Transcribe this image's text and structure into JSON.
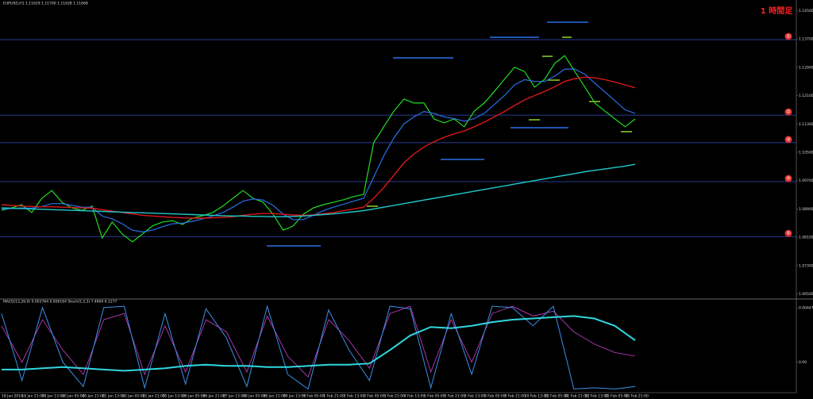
{
  "chart_data": [
    {
      "type": "line",
      "title": "EURUSD,H1  1.11629 1.11700 1.11628 1.11668",
      "annotation": "1 時間足",
      "categories": [
        "18 Jan 2016",
        null,
        "18 Jan 21:00",
        null,
        "19 Jan 13:00",
        null,
        "20 Jan 05:00",
        null,
        "20 Jan 21:00",
        null,
        "21 Jan 13:00",
        null,
        "22 Jan 05:00",
        null,
        "22 Jan 21:00",
        null,
        "25 Jan 13:00",
        null,
        "26 Jan 05:00",
        null,
        "26 Jan 21:00",
        null,
        "27 Jan 13:00",
        null,
        "28 Jan 05:00",
        null,
        "28 Jan 21:00",
        null,
        "29 Jan 13:00",
        null,
        "1 Feb 05:00",
        null,
        "1 Feb 21:00",
        null,
        "2 Feb 13:00",
        null,
        "3 Feb 05:00",
        null,
        "3 Feb 21:00",
        null,
        "4 Feb 13:00",
        null,
        "5 Feb 05:00",
        null,
        "5 Feb 21:00",
        null,
        "8 Feb 13:00",
        null,
        "9 Feb 05:00",
        null,
        "9 Feb 21:00",
        null,
        "10 Feb 13:00",
        null,
        "11 Feb 05:00",
        null,
        "11 Feb 21:00",
        null,
        "12 Feb 13:00",
        null,
        "15 Feb 05:00",
        null,
        "15 Feb 21:00",
        null
      ],
      "series": [
        {
          "color": "#22dd22",
          "width": 1.2,
          "values": [
            1.0886,
            1.0893,
            1.0902,
            1.088,
            1.092,
            1.0942,
            1.0909,
            1.0893,
            1.0886,
            1.0898,
            1.0808,
            1.0853,
            1.0819,
            1.0797,
            1.0819,
            1.0842,
            1.0853,
            1.0857,
            1.0846,
            1.0864,
            1.0871,
            1.088,
            1.0898,
            1.092,
            1.0942,
            1.092,
            1.0909,
            1.0875,
            1.083,
            1.0842,
            1.0875,
            1.0893,
            1.0902,
            1.0909,
            1.0916,
            1.0925,
            1.0931,
            1.1077,
            1.1122,
            1.1166,
            1.12,
            1.1189,
            1.1189,
            1.1144,
            1.1133,
            1.1144,
            1.1122,
            1.1166,
            1.1189,
            1.1222,
            1.1256,
            1.129,
            1.1278,
            1.1234,
            1.1256,
            1.1301,
            1.1323,
            1.1278,
            1.1234,
            1.1189,
            1.1166,
            1.1144,
            1.1122,
            1.1144
          ]
        },
        {
          "color": "#2a6fe8",
          "width": 1.2,
          "values": [
            1.089,
            1.0891,
            1.0893,
            1.0892,
            1.0897,
            1.0905,
            1.0905,
            1.09,
            1.0895,
            1.0895,
            1.087,
            1.0862,
            1.0848,
            1.083,
            1.0825,
            1.083,
            1.084,
            1.0848,
            1.085,
            1.0855,
            1.0862,
            1.087,
            1.088,
            1.0895,
            1.0912,
            1.0918,
            1.0915,
            1.09,
            1.0875,
            1.086,
            1.086,
            1.0872,
            1.0885,
            1.0895,
            1.0903,
            1.0912,
            1.092,
            1.098,
            1.104,
            1.109,
            1.113,
            1.115,
            1.1165,
            1.116,
            1.115,
            1.1145,
            1.1138,
            1.1145,
            1.116,
            1.1185,
            1.121,
            1.124,
            1.1255,
            1.125,
            1.125,
            1.1265,
            1.1285,
            1.1285,
            1.127,
            1.1245,
            1.122,
            1.1195,
            1.117,
            1.116
          ]
        },
        {
          "color": "#d81818",
          "width": 1.4,
          "values": [
            1.0902,
            1.09,
            1.0898,
            1.0897,
            1.0896,
            1.0896,
            1.0895,
            1.0894,
            1.0893,
            1.0892,
            1.0888,
            1.0884,
            1.088,
            1.0876,
            1.0872,
            1.087,
            1.0868,
            1.0866,
            1.0865,
            1.0864,
            1.0864,
            1.0865,
            1.0866,
            1.0868,
            1.0872,
            1.0875,
            1.0877,
            1.0877,
            1.0875,
            1.0873,
            1.0872,
            1.0873,
            1.0876,
            1.088,
            1.0885,
            1.089,
            1.0895,
            1.092,
            1.095,
            1.0985,
            1.102,
            1.1045,
            1.1065,
            1.108,
            1.1092,
            1.1102,
            1.111,
            1.1122,
            1.1135,
            1.115,
            1.1165,
            1.1182,
            1.1198,
            1.121,
            1.1222,
            1.1235,
            1.125,
            1.1258,
            1.1262,
            1.126,
            1.1255,
            1.1248,
            1.124,
            1.1232
          ]
        },
        {
          "color": "#22c8c8",
          "width": 1.4,
          "values": [
            1.0893,
            1.0892,
            1.0891,
            1.089,
            1.0889,
            1.0888,
            1.0887,
            1.0886,
            1.0885,
            1.0884,
            1.0883,
            1.0882,
            1.0881,
            1.088,
            1.0879,
            1.0878,
            1.0877,
            1.0876,
            1.0875,
            1.0874,
            1.0873,
            1.0872,
            1.0871,
            1.087,
            1.087,
            1.0869,
            1.0869,
            1.0868,
            1.0868,
            1.0869,
            1.087,
            1.0872,
            1.0874,
            1.0876,
            1.0879,
            1.0882,
            1.0885,
            1.089,
            1.0895,
            1.09,
            1.0905,
            1.091,
            1.0915,
            1.092,
            1.0925,
            1.093,
            1.0935,
            1.094,
            1.0945,
            1.095,
            1.0955,
            1.096,
            1.0965,
            1.097,
            1.0975,
            1.098,
            1.0985,
            1.099,
            1.0995,
            1.0999,
            1.1003,
            1.1007,
            1.1011,
            1.1016
          ]
        }
      ],
      "levels": [
        1.1368,
        1.1155,
        1.1077,
        1.0967,
        1.0812
      ],
      "level_labels": [
        "①",
        "②",
        "③",
        "④",
        "⑤"
      ],
      "level_color": "#3050c0",
      "ylim": [
        1.064,
        1.148
      ],
      "yticks": [
        {
          "value": 1.145,
          "label": "1.14500"
        },
        {
          "value": 1.137,
          "label": "1.13700"
        },
        {
          "value": 1.129,
          "label": "1.12900"
        },
        {
          "value": 1.121,
          "label": "1.12100"
        },
        {
          "value": 1.113,
          "label": "1.11300"
        },
        {
          "value": 1.105,
          "label": "1.10500"
        },
        {
          "value": 1.097,
          "label": "1.09700"
        },
        {
          "value": 1.089,
          "label": "1.08900"
        },
        {
          "value": 1.081,
          "label": "1.08100"
        },
        {
          "value": 1.073,
          "label": "1.07300"
        },
        {
          "value": 1.065,
          "label": "1.06500"
        }
      ],
      "grid": false
    },
    {
      "type": "line",
      "title": "MACD(12,26,9) 0.003764 0.006164  Stoch(5,3,3) 7.4669 6.1277",
      "series": [
        {
          "color": "#d040d0",
          "width": 0.8,
          "values": [
            0.003,
            0.0,
            0.0035,
            0.001,
            -0.001,
            0.0035,
            0.004,
            -0.001,
            0.003,
            -0.0008,
            0.0035,
            0.0025,
            -0.0008,
            0.0038,
            0.0005,
            -0.0012,
            0.0035,
            0.0018,
            -0.0005,
            0.004,
            0.0046,
            -0.0008,
            0.0035,
            0.0,
            0.004,
            0.0046,
            0.0038,
            0.0042,
            0.0025,
            0.0015,
            0.0008,
            0.0005
          ]
        },
        {
          "color": "#3a8fe8",
          "width": 1,
          "values": [
            0.004,
            -0.0015,
            0.0045,
            0.0,
            -0.002,
            0.0045,
            0.0046,
            -0.0021,
            0.004,
            -0.0018,
            0.0044,
            0.002,
            -0.002,
            0.0046,
            -0.001,
            -0.0022,
            0.0043,
            0.001,
            -0.0015,
            0.0046,
            0.0044,
            -0.0021,
            0.004,
            -0.001,
            0.0046,
            0.0045,
            0.003,
            0.0046,
            -0.0022,
            -0.0021,
            -0.0022,
            -0.002
          ]
        },
        {
          "color": "#30d8e0",
          "width": 2,
          "values": [
            -0.0006,
            -0.0006,
            -0.0005,
            -0.0004,
            -0.0005,
            -0.0006,
            -0.0007,
            -0.0006,
            -0.0005,
            -0.0003,
            -0.0002,
            -0.0003,
            -0.0003,
            -0.0004,
            -0.0004,
            -0.0003,
            -0.0002,
            -0.0002,
            -0.0001,
            0.001,
            0.0022,
            0.0029,
            0.0028,
            0.003,
            0.0033,
            0.0035,
            0.0036,
            0.0037,
            0.0038,
            0.0036,
            0.003,
            0.0018
          ]
        }
      ],
      "ylim": [
        -0.0025,
        0.005
      ],
      "yticks": [
        0.00447,
        {
          "value": 0,
          "label": "0.00"
        }
      ]
    }
  ]
}
